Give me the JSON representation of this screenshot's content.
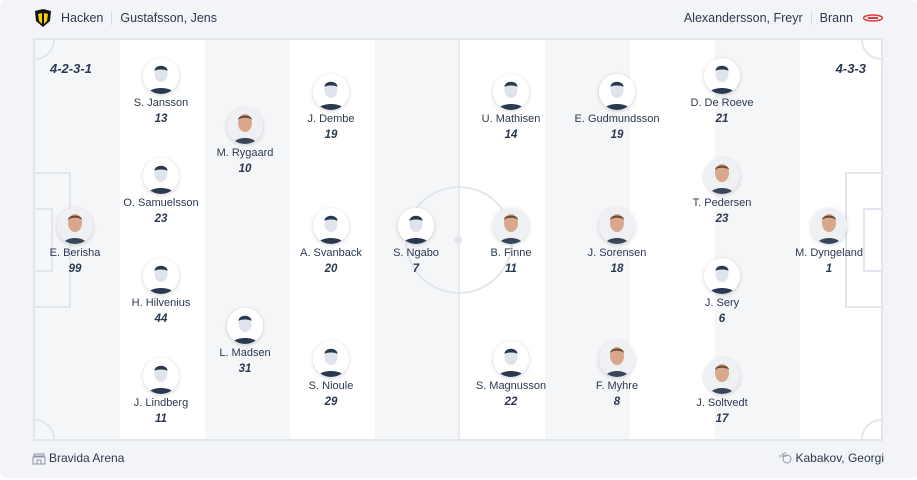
{
  "home": {
    "team": "Hacken",
    "coach": "Gustafsson, Jens",
    "formation": "4-2-3-1",
    "logo_colors": [
      "#f5d000",
      "#111111"
    ]
  },
  "away": {
    "team": "Brann",
    "coach": "Alexandersson, Freyr",
    "formation": "4-3-3",
    "logo_color": "#e23a3a"
  },
  "venue": {
    "icon": "stadium-icon",
    "name": "Bravida Arena"
  },
  "referee": {
    "icon": "whistle-icon",
    "name": "Kabakov, Georgi"
  },
  "players": [
    {
      "name": "E. Berisha",
      "number": "99",
      "photo": true,
      "col": 75,
      "row": 206
    },
    {
      "name": "S. Jansson",
      "number": "13",
      "photo": false,
      "col": 161,
      "row": 56
    },
    {
      "name": "O. Samuelsson",
      "number": "23",
      "photo": false,
      "col": 161,
      "row": 156
    },
    {
      "name": "H. Hilvenius",
      "number": "44",
      "photo": false,
      "col": 161,
      "row": 256
    },
    {
      "name": "J. Lindberg",
      "number": "11",
      "photo": false,
      "col": 161,
      "row": 356
    },
    {
      "name": "M. Rygaard",
      "number": "10",
      "photo": true,
      "col": 245,
      "row": 106
    },
    {
      "name": "L. Madsen",
      "number": "31",
      "photo": false,
      "col": 245,
      "row": 306
    },
    {
      "name": "J. Dembe",
      "number": "19",
      "photo": false,
      "col": 331,
      "row": 72
    },
    {
      "name": "A. Svanback",
      "number": "20",
      "photo": false,
      "col": 331,
      "row": 206
    },
    {
      "name": "S. Nioule",
      "number": "29",
      "photo": false,
      "col": 331,
      "row": 339
    },
    {
      "name": "S. Ngabo",
      "number": "7",
      "photo": false,
      "col": 416,
      "row": 206
    },
    {
      "name": "U. Mathisen",
      "number": "14",
      "photo": false,
      "col": 511,
      "row": 72
    },
    {
      "name": "B. Finne",
      "number": "11",
      "photo": true,
      "col": 511,
      "row": 206
    },
    {
      "name": "S. Magnusson",
      "number": "22",
      "photo": false,
      "col": 511,
      "row": 339
    },
    {
      "name": "E. Gudmundsson",
      "number": "19",
      "photo": false,
      "col": 617,
      "row": 72
    },
    {
      "name": "J. Sorensen",
      "number": "18",
      "photo": true,
      "col": 617,
      "row": 206
    },
    {
      "name": "F. Myhre",
      "number": "8",
      "photo": true,
      "col": 617,
      "row": 339
    },
    {
      "name": "D. De Roeve",
      "number": "21",
      "photo": false,
      "col": 722,
      "row": 56
    },
    {
      "name": "T. Pedersen",
      "number": "23",
      "photo": true,
      "col": 722,
      "row": 156
    },
    {
      "name": "J. Sery",
      "number": "6",
      "photo": false,
      "col": 722,
      "row": 256
    },
    {
      "name": "J. Soltvedt",
      "number": "17",
      "photo": true,
      "col": 722,
      "row": 356
    },
    {
      "name": "M. Dyngeland",
      "number": "1",
      "photo": true,
      "col": 829,
      "row": 206
    }
  ]
}
